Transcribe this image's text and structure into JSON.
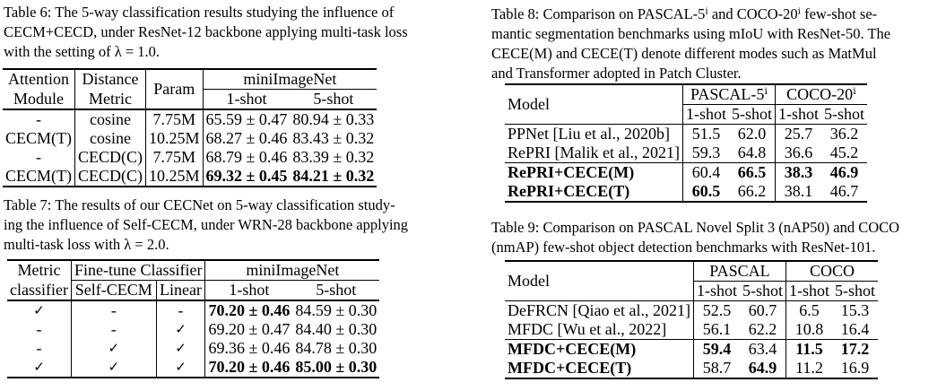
{
  "table6": {
    "caption_lines": [
      "Table 6: The 5-way classification results studying the influence of",
      "CECM+CECD, under ResNet-12 backbone applying multi-task loss",
      "with the setting of λ = 1.0."
    ],
    "headers": {
      "attention_l1": "Attention",
      "attention_l2": "Module",
      "distance_l1": "Distance",
      "distance_l2": "Metric",
      "param": "Param",
      "group": "miniImageNet",
      "shot1": "1-shot",
      "shot5": "5-shot"
    },
    "rows": [
      {
        "attention": "-",
        "metric": "cosine",
        "param": "7.75M",
        "s1": "65.59 ± 0.47",
        "s5": "80.94 ± 0.33",
        "bold1": false,
        "bold5": false
      },
      {
        "attention": "CECM(T)",
        "metric": "cosine",
        "param": "10.25M",
        "s1": "68.27 ± 0.46",
        "s5": "83.43 ± 0.32",
        "bold1": false,
        "bold5": false
      },
      {
        "attention": "-",
        "metric": "CECD(C)",
        "param": "7.75M",
        "s1": "68.79 ± 0.46",
        "s5": "83.39 ± 0.32",
        "bold1": false,
        "bold5": false
      },
      {
        "attention": "CECM(T)",
        "metric": "CECD(C)",
        "param": "10.25M",
        "s1": "69.32 ± 0.45",
        "s5": "84.21 ± 0.32",
        "bold1": true,
        "bold5": true
      }
    ]
  },
  "table7": {
    "caption_lines": [
      "Table 7: The results of our CECNet on 5-way classification study-",
      "ing the influence of Self-CECM, under WRN-28 backbone applying",
      "multi-task loss with λ = 2.0."
    ],
    "headers": {
      "metric_l1": "Metric",
      "metric_l2": "classifier",
      "finetune": "Fine-tune Classifier",
      "selfcecm": "Self-CECM",
      "linear": "Linear",
      "group": "miniImageNet",
      "shot1": "1-shot",
      "shot5": "5-shot"
    },
    "rows": [
      {
        "metric": "✓",
        "selfcecm": "-",
        "linear": "-",
        "s1": "70.20 ± 0.46",
        "s5": "84.59 ± 0.30",
        "bold1": true,
        "bold5": false
      },
      {
        "metric": "-",
        "selfcecm": "-",
        "linear": "✓",
        "s1": "69.20 ± 0.47",
        "s5": "84.40 ± 0.30",
        "bold1": false,
        "bold5": false
      },
      {
        "metric": "-",
        "selfcecm": "✓",
        "linear": "✓",
        "s1": "69.36 ± 0.46",
        "s5": "84.78 ± 0.30",
        "bold1": false,
        "bold5": false
      },
      {
        "metric": "✓",
        "selfcecm": "✓",
        "linear": "✓",
        "s1": "70.20 ± 0.46",
        "s5": "85.00 ± 0.30",
        "bold1": true,
        "bold5": true
      }
    ]
  },
  "table8": {
    "caption_lines": [
      "Table 8: Comparison on PASCAL-5ⁱ and COCO-20ⁱ few-shot se-",
      "mantic segmentation benchmarks using mIoU with ResNet-50. The",
      "CECE(M) and CECE(T) denote different modes such as MatMul",
      "and Transformer adopted in Patch Cluster."
    ],
    "headers": {
      "model": "Model",
      "group1": "PASCAL-5ⁱ",
      "group2": "COCO-20ⁱ",
      "shot1": "1-shot",
      "shot5": "5-shot"
    },
    "rows": [
      {
        "model": "PPNet [Liu et al., 2020b]",
        "v": [
          "51.5",
          "62.0",
          "25.7",
          "36.2"
        ],
        "bold": [
          false,
          false,
          false,
          false
        ],
        "model_bold": false
      },
      {
        "model": "RePRI [Malik et al., 2021]",
        "v": [
          "59.3",
          "64.8",
          "36.6",
          "45.2"
        ],
        "bold": [
          false,
          false,
          false,
          false
        ],
        "model_bold": false
      },
      {
        "model": "RePRI+CECE(M)",
        "v": [
          "60.4",
          "66.5",
          "38.3",
          "46.9"
        ],
        "bold": [
          false,
          true,
          true,
          true
        ],
        "model_bold": true
      },
      {
        "model": "RePRI+CECE(T)",
        "v": [
          "60.5",
          "66.2",
          "38.1",
          "46.7"
        ],
        "bold": [
          true,
          false,
          false,
          false
        ],
        "model_bold": true
      }
    ]
  },
  "table9": {
    "caption_lines": [
      "Table 9: Comparison on PASCAL Novel Split 3 (nAP50) and COCO",
      "(nmAP) few-shot object detection benchmarks with ResNet-101."
    ],
    "headers": {
      "model": "Model",
      "group1": "PASCAL",
      "group2": "COCO",
      "shot1": "1-shot",
      "shot5": "5-shot"
    },
    "rows": [
      {
        "model": "DeFRCN [Qiao et al., 2021]",
        "v": [
          "52.5",
          "60.7",
          "6.5",
          "15.3"
        ],
        "bold": [
          false,
          false,
          false,
          false
        ],
        "model_bold": false
      },
      {
        "model": "MFDC [Wu et al., 2022]",
        "v": [
          "56.1",
          "62.2",
          "10.8",
          "16.4"
        ],
        "bold": [
          false,
          false,
          false,
          false
        ],
        "model_bold": false
      },
      {
        "model": "MFDC+CECE(M)",
        "v": [
          "59.4",
          "63.4",
          "11.5",
          "17.2"
        ],
        "bold": [
          true,
          false,
          true,
          true
        ],
        "model_bold": true
      },
      {
        "model": "MFDC+CECE(T)",
        "v": [
          "58.7",
          "64.9",
          "11.2",
          "16.9"
        ],
        "bold": [
          false,
          true,
          false,
          false
        ],
        "model_bold": true
      }
    ]
  }
}
